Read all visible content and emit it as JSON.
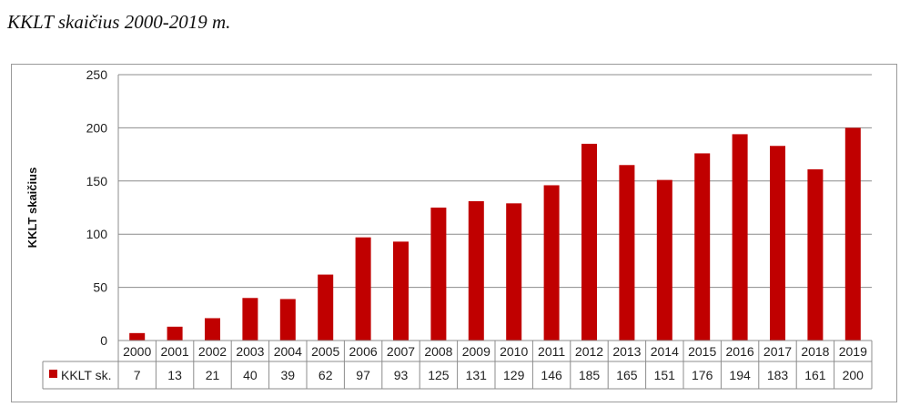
{
  "caption": "KKLT skaičius 2000-2019 m.",
  "chart_data": {
    "type": "bar",
    "categories": [
      "2000",
      "2001",
      "2002",
      "2003",
      "2004",
      "2005",
      "2006",
      "2007",
      "2008",
      "2009",
      "2010",
      "2011",
      "2012",
      "2013",
      "2014",
      "2015",
      "2016",
      "2017",
      "2018",
      "2019"
    ],
    "series": [
      {
        "name": "KKLT sk.",
        "values": [
          7,
          13,
          21,
          40,
          39,
          62,
          97,
          93,
          125,
          131,
          129,
          146,
          185,
          165,
          151,
          176,
          194,
          183,
          161,
          200
        ],
        "color": "#c00000"
      }
    ],
    "ylabel": "KKLT skaičius",
    "ylim": [
      0,
      250
    ],
    "yticks": [
      0,
      50,
      100,
      150,
      200,
      250
    ],
    "grid": true,
    "data_table": true
  }
}
